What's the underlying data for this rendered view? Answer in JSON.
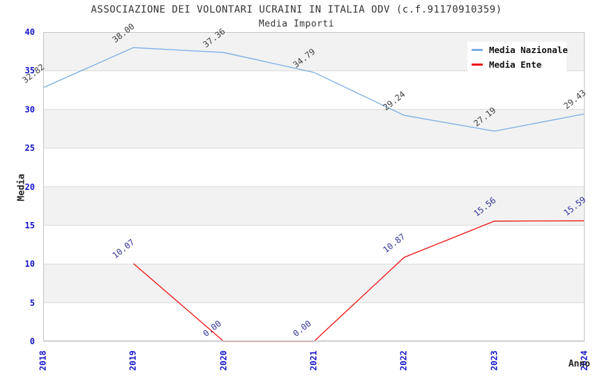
{
  "header": {
    "title": "ASSOCIAZIONE DEI VOLONTARI UCRAINI IN ITALIA ODV (c.f.91170910359)",
    "subtitle": "Media Importi"
  },
  "chart_data": {
    "type": "line",
    "title": "ASSOCIAZIONE DEI VOLONTARI UCRAINI IN ITALIA ODV (c.f.91170910359)",
    "subtitle": "Media Importi",
    "xlabel": "Anno",
    "ylabel": "Media",
    "categories": [
      "2018",
      "2019",
      "2020",
      "2021",
      "2022",
      "2023",
      "2024"
    ],
    "ylim": [
      0,
      40
    ],
    "ytick_step": 5,
    "yticks": [
      "0",
      "5",
      "10",
      "15",
      "20",
      "25",
      "30",
      "35",
      "40"
    ],
    "grid": "horizontal gridlines with alternating gray/white bands",
    "legend_position": "top-right",
    "series": [
      {
        "name": "Media Nazionale",
        "color": "#7aade4",
        "label_color": "#404040",
        "values": [
          32.82,
          38.0,
          37.36,
          34.79,
          29.24,
          27.19,
          29.43
        ],
        "labels": [
          "32.82",
          "38.00",
          "37.36",
          "34.79",
          "29.24",
          "27.19",
          "29.43"
        ]
      },
      {
        "name": "Media Ente",
        "color": "#ee1111",
        "label_color": "#333399",
        "values": [
          null,
          10.07,
          0.0,
          0.0,
          10.87,
          15.56,
          15.59
        ],
        "labels": [
          null,
          "10.07",
          "0.00",
          "0.00",
          "10.87",
          "15.56",
          "15.59"
        ]
      }
    ],
    "colors": {
      "tick_label": "#1515cd",
      "band_fill": "#f2f2f2",
      "gridline": "#d9d9d9",
      "plot_border": "#c4c4c4",
      "title_text": "#333333"
    }
  }
}
